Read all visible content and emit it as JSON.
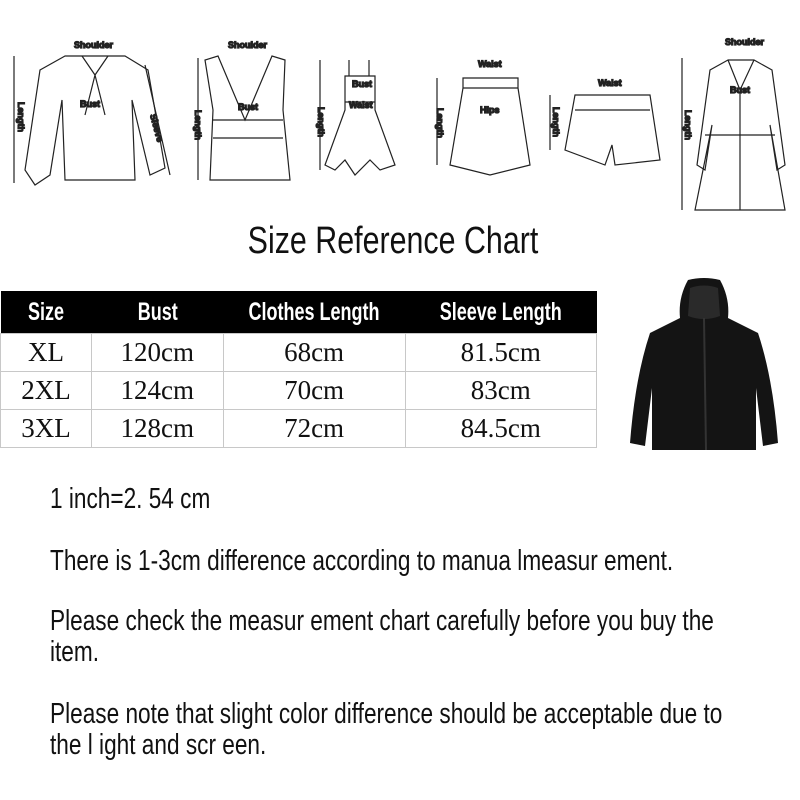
{
  "diagrams": [
    {
      "name": "blouse",
      "labels": [
        "Shoulder",
        "Bust",
        "Length",
        "Sleeve"
      ]
    },
    {
      "name": "tank-top",
      "labels": [
        "Shoulder",
        "Bust",
        "Length"
      ]
    },
    {
      "name": "dress",
      "labels": [
        "Bust",
        "Waist",
        "Length"
      ]
    },
    {
      "name": "skirt",
      "labels": [
        "Waist",
        "Hips",
        "Length"
      ]
    },
    {
      "name": "shorts",
      "labels": [
        "Waist",
        "Length"
      ]
    },
    {
      "name": "coat",
      "labels": [
        "Shoulder",
        "Bust",
        "Length"
      ]
    }
  ],
  "title": "Size Reference Chart",
  "table": {
    "headers": [
      "Size",
      "Bust",
      "Clothes Length",
      "Sleeve Length"
    ],
    "rows": [
      [
        "XL",
        "120cm",
        "68cm",
        "81.5cm"
      ],
      [
        "2XL",
        "124cm",
        "70cm",
        "83cm"
      ],
      [
        "3XL",
        "128cm",
        "72cm",
        "84.5cm"
      ]
    ]
  },
  "product_image": "black-hooded-jacket",
  "notes": [
    "1 inch=2. 54 cm",
    "There is 1-3cm difference according to manua lmeasur ement.",
    "Please check the measur ement chart carefully before you buy the item.",
    "Please note that slight color difference should be acceptable due to the l ight and scr een."
  ]
}
